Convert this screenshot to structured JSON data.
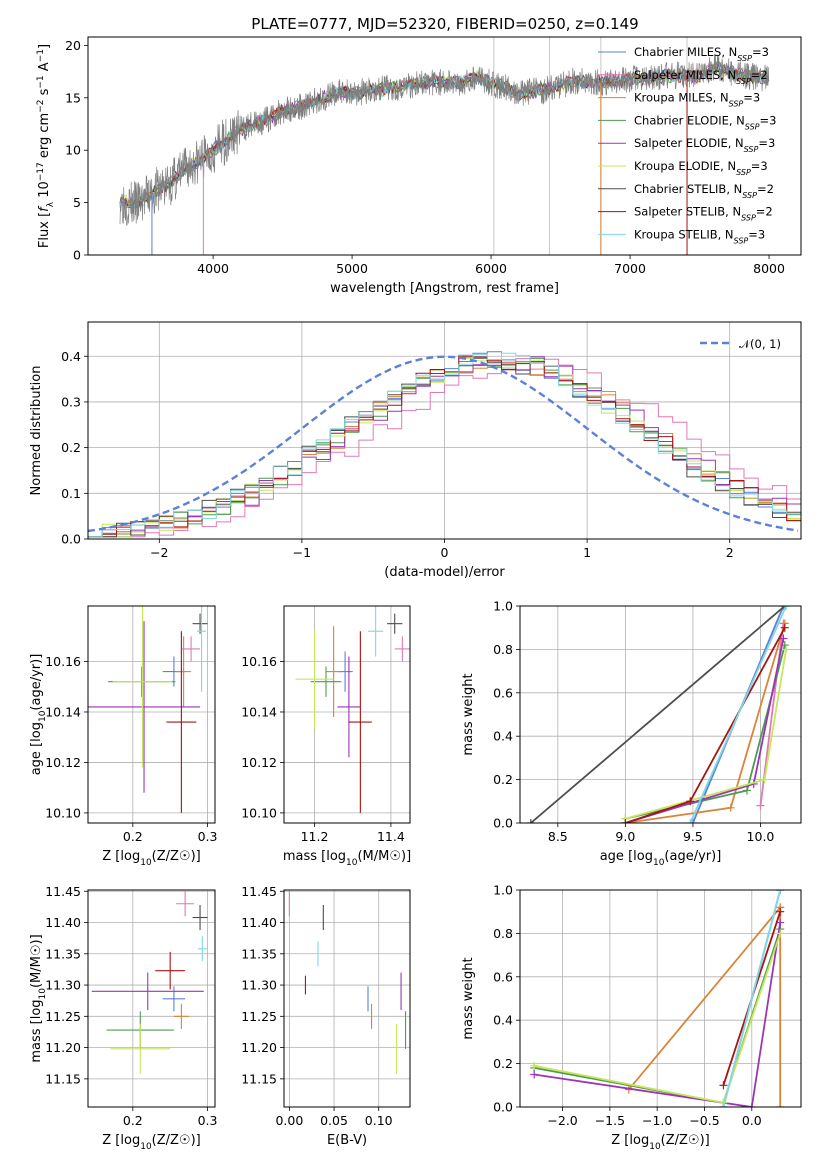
{
  "figure": {
    "title": "PLATE=0777, MJD=52320, FIBERID=0250, z=0.149"
  },
  "models": [
    {
      "name": "Chabrier MILES",
      "nssp": "3",
      "color": "#5d81d6"
    },
    {
      "name": "Salpeter MILES",
      "nssp": "2",
      "color": "#e07ab5"
    },
    {
      "name": "Kroupa MILES",
      "nssp": "3",
      "color": "#d98436"
    },
    {
      "name": "Chabrier ELODIE",
      "nssp": "3",
      "color": "#4f9a4f"
    },
    {
      "name": "Salpeter ELODIE",
      "nssp": "3",
      "color": "#9b35b8"
    },
    {
      "name": "Kroupa ELODIE",
      "nssp": "3",
      "color": "#c5e85a"
    },
    {
      "name": "Chabrier STELIB",
      "nssp": "2",
      "color": "#4d4d4d"
    },
    {
      "name": "Salpeter STELIB",
      "nssp": "2",
      "color": "#a61414"
    },
    {
      "name": "Kroupa STELIB",
      "nssp": "3",
      "color": "#7fd8e4"
    }
  ],
  "chart_data": [
    {
      "id": "spectrum",
      "type": "line",
      "title": "PLATE=0777, MJD=52320, FIBERID=0250, z=0.149",
      "xlabel": "wavelength [Angstrom, rest frame]",
      "ylabel": "Flux [f_λ 10^-17 erg cm^-2 s^-1 A^-1]",
      "xlim": [
        3100,
        8230
      ],
      "ylim": [
        0,
        20.8
      ],
      "xticks": [
        4000,
        5000,
        6000,
        7000,
        8000
      ],
      "yticks": [
        0,
        5,
        10,
        15,
        20
      ],
      "grid": false,
      "legend": "top-right",
      "data_color": "#808080",
      "data_anchors": {
        "x": [
          3330,
          3450,
          3600,
          3700,
          3800,
          3900,
          4000,
          4100,
          4200,
          4300,
          4400,
          4500,
          4600,
          4700,
          4800,
          4900,
          5000,
          5100,
          5200,
          5300,
          5400,
          5500,
          5600,
          5700,
          5800,
          5900,
          6000,
          6100,
          6200,
          6300,
          6400,
          6500,
          6600,
          6700,
          6800,
          6900,
          7000,
          7100,
          7200,
          7300,
          7400,
          7500,
          7600,
          7700,
          7800,
          7900,
          8000
        ],
        "y": [
          5.2,
          4.8,
          6.2,
          7.0,
          8.2,
          9.0,
          10.0,
          11.0,
          12.0,
          12.5,
          13.0,
          13.8,
          14.0,
          14.5,
          15.0,
          15.5,
          15.5,
          15.6,
          15.8,
          16.0,
          16.2,
          16.4,
          16.5,
          16.4,
          16.5,
          17.0,
          16.4,
          16.0,
          15.3,
          15.6,
          15.8,
          16.2,
          16.6,
          16.5,
          16.4,
          16.6,
          16.8,
          16.8,
          17.0,
          17.1,
          17.2,
          17.0,
          18.0,
          17.5,
          17.2,
          17.0,
          16.8
        ]
      },
      "gap_lines": [
        6020,
        6420,
        6790,
        7410
      ]
    },
    {
      "id": "residual-hist",
      "type": "line",
      "xlabel": "(data-model)/error",
      "ylabel": "Normed distribution",
      "xlim": [
        -2.5,
        2.5
      ],
      "ylim": [
        0,
        0.475
      ],
      "xticks": [
        -2,
        -1,
        0,
        1,
        2
      ],
      "yticks": [
        0.0,
        0.1,
        0.2,
        0.3,
        0.4
      ],
      "grid": true,
      "legend": "top-right",
      "bin_width": 0.1,
      "normal": {
        "label": "𝒩(0, 1)",
        "mu": 0,
        "sigma": 1,
        "color": "#5d81d6"
      },
      "hist_shape": {
        "mu": 0.35,
        "sigma": 1.05,
        "peak": 0.39
      },
      "shift": [
        0.0,
        0.25,
        0.05,
        0.02,
        0.08,
        0.0,
        -0.03,
        0.02,
        0.0
      ]
    },
    {
      "id": "age-vs-z",
      "type": "scatter",
      "xlabel": "Z [log10(Z/Z☉)]",
      "ylabel": "age  [log10(age/yr)]",
      "xlim": [
        0.14,
        0.31
      ],
      "ylim": [
        10.096,
        10.182
      ],
      "xticks": [
        0.2,
        0.3
      ],
      "yticks": [
        10.1,
        10.12,
        10.14,
        10.16
      ],
      "grid": true,
      "points": [
        {
          "x": 0.255,
          "y": 10.156,
          "xerr": 0.015,
          "yerr": 0.006
        },
        {
          "x": 0.278,
          "y": 10.165,
          "xerr": 0.012,
          "yerr": 0.005
        },
        {
          "x": 0.268,
          "y": 10.156,
          "xerr": 0.01,
          "yerr": 0.014
        },
        {
          "x": 0.212,
          "y": 10.152,
          "xerr": 0.045,
          "yerr": 0.006
        },
        {
          "x": 0.215,
          "y": 10.142,
          "xerr": 0.075,
          "yerr": 0.034
        },
        {
          "x": 0.213,
          "y": 10.152,
          "xerr": 0.04,
          "yerr": 0.034
        },
        {
          "x": 0.29,
          "y": 10.175,
          "xerr": 0.01,
          "yerr": 0.004
        },
        {
          "x": 0.265,
          "y": 10.136,
          "xerr": 0.02,
          "yerr": 0.036
        },
        {
          "x": 0.292,
          "y": 10.172,
          "xerr": 0.006,
          "yerr": 0.024
        }
      ]
    },
    {
      "id": "age-vs-mass",
      "type": "scatter",
      "xlabel": "mass [log10(M/M☉)]",
      "ylabel": "",
      "xlim": [
        11.12,
        11.45
      ],
      "ylim": [
        10.096,
        10.182
      ],
      "xticks": [
        11.2,
        11.4
      ],
      "yticks": [
        10.1,
        10.12,
        10.14,
        10.16
      ],
      "grid": true,
      "points": [
        {
          "x": 11.28,
          "y": 10.156,
          "xerr": 0.02,
          "yerr": 0.008
        },
        {
          "x": 11.43,
          "y": 10.165,
          "xerr": 0.02,
          "yerr": 0.005
        },
        {
          "x": 11.25,
          "y": 10.156,
          "xerr": 0.02,
          "yerr": 0.018
        },
        {
          "x": 11.23,
          "y": 10.152,
          "xerr": 0.04,
          "yerr": 0.006
        },
        {
          "x": 11.29,
          "y": 10.142,
          "xerr": 0.03,
          "yerr": 0.02
        },
        {
          "x": 11.2,
          "y": 10.153,
          "xerr": 0.05,
          "yerr": 0.02
        },
        {
          "x": 11.41,
          "y": 10.175,
          "xerr": 0.02,
          "yerr": 0.004
        },
        {
          "x": 11.32,
          "y": 10.136,
          "xerr": 0.03,
          "yerr": 0.036
        },
        {
          "x": 11.36,
          "y": 10.172,
          "xerr": 0.02,
          "yerr": 0.01
        }
      ]
    },
    {
      "id": "weight-vs-age",
      "type": "line",
      "xlabel": "age  [log10(age/yr)]",
      "ylabel": "mass weight",
      "xlim": [
        8.22,
        10.3
      ],
      "ylim": [
        0,
        1
      ],
      "xticks": [
        8.5,
        9.0,
        9.5,
        10.0
      ],
      "yticks": [
        0.0,
        0.2,
        0.4,
        0.6,
        0.8,
        1.0
      ],
      "grid": true,
      "series": [
        {
          "x": [
            9.5,
            10.17
          ],
          "y": [
            0.0,
            1.0
          ]
        },
        {
          "x": [
            10.0,
            10.17
          ],
          "y": [
            0.08,
            0.92
          ]
        },
        {
          "x": [
            9.0,
            9.78,
            10.18
          ],
          "y": [
            0.0,
            0.07,
            0.92
          ]
        },
        {
          "x": [
            9.0,
            9.9,
            10.18
          ],
          "y": [
            0.02,
            0.15,
            0.82
          ]
        },
        {
          "x": [
            9.0,
            9.95,
            10.17
          ],
          "y": [
            0.0,
            0.18,
            0.85
          ]
        },
        {
          "x": [
            9.0,
            10.03,
            10.19
          ],
          "y": [
            0.02,
            0.2,
            0.8
          ]
        },
        {
          "x": [
            8.3,
            10.18
          ],
          "y": [
            0.0,
            1.0
          ]
        },
        {
          "x": [
            9.0,
            9.48,
            10.18
          ],
          "y": [
            0.0,
            0.1,
            0.9
          ]
        },
        {
          "x": [
            9.48,
            10.19
          ],
          "y": [
            0.0,
            1.0
          ]
        }
      ]
    },
    {
      "id": "mass-vs-z",
      "type": "scatter",
      "xlabel": "Z [log10(Z/Z☉)]",
      "ylabel": "mass [log10(M/M☉)]",
      "xlim": [
        0.14,
        0.31
      ],
      "ylim": [
        11.105,
        11.452
      ],
      "xticks": [
        0.2,
        0.3
      ],
      "yticks": [
        11.15,
        11.2,
        11.25,
        11.3,
        11.35,
        11.4,
        11.45
      ],
      "grid": true,
      "points": [
        {
          "x": 0.255,
          "y": 11.278,
          "xerr": 0.015,
          "yerr": 0.02
        },
        {
          "x": 0.27,
          "y": 11.43,
          "xerr": 0.012,
          "yerr": 0.02
        },
        {
          "x": 0.265,
          "y": 11.25,
          "xerr": 0.01,
          "yerr": 0.02
        },
        {
          "x": 0.21,
          "y": 11.228,
          "xerr": 0.045,
          "yerr": 0.03
        },
        {
          "x": 0.22,
          "y": 11.29,
          "xerr": 0.075,
          "yerr": 0.03
        },
        {
          "x": 0.21,
          "y": 11.198,
          "xerr": 0.04,
          "yerr": 0.04
        },
        {
          "x": 0.29,
          "y": 11.408,
          "xerr": 0.01,
          "yerr": 0.02
        },
        {
          "x": 0.25,
          "y": 11.323,
          "xerr": 0.02,
          "yerr": 0.03
        },
        {
          "x": 0.293,
          "y": 11.358,
          "xerr": 0.006,
          "yerr": 0.02
        }
      ]
    },
    {
      "id": "mass-vs-ebv",
      "type": "scatter",
      "xlabel": "E(B-V)",
      "ylabel": "",
      "xlim": [
        -0.006,
        0.135
      ],
      "ylim": [
        11.105,
        11.452
      ],
      "xticks": [
        0.0,
        0.05,
        0.1
      ],
      "yticks": [
        11.15,
        11.2,
        11.25,
        11.3,
        11.35,
        11.4,
        11.45
      ],
      "grid": true,
      "points": [
        {
          "x": 0.088,
          "y": 11.278,
          "xerr": 0.0,
          "yerr": 0.02
        },
        {
          "x": 0.0,
          "y": 11.43,
          "xerr": 0.0,
          "yerr": 0.02
        },
        {
          "x": 0.092,
          "y": 11.25,
          "xerr": 0.0,
          "yerr": 0.02
        },
        {
          "x": 0.13,
          "y": 11.228,
          "xerr": 0.0,
          "yerr": 0.03
        },
        {
          "x": 0.125,
          "y": 11.29,
          "xerr": 0.0,
          "yerr": 0.03
        },
        {
          "x": 0.12,
          "y": 11.198,
          "xerr": 0.0,
          "yerr": 0.04
        },
        {
          "x": 0.038,
          "y": 11.408,
          "xerr": 0.0,
          "yerr": 0.02
        },
        {
          "x": 0.018,
          "y": 11.3,
          "xerr": 0.0,
          "yerr": 0.015
        },
        {
          "x": 0.032,
          "y": 11.35,
          "xerr": 0.0,
          "yerr": 0.02
        }
      ]
    },
    {
      "id": "weight-vs-z",
      "type": "line",
      "xlabel": "Z [log10(Z/Z☉)]",
      "ylabel": "mass weight",
      "xlim": [
        -2.45,
        0.52
      ],
      "ylim": [
        0,
        1
      ],
      "xticks": [
        -2.0,
        -1.5,
        -1.0,
        -0.5,
        0.0
      ],
      "yticks": [
        0.0,
        0.2,
        0.4,
        0.6,
        0.8,
        1.0
      ],
      "grid": true,
      "series": [
        {
          "x": [
            -0.3,
            0.3
          ],
          "y": [
            0.0,
            1.0
          ]
        },
        {
          "x": [
            0.3
          ],
          "y": [
            0.92
          ]
        },
        {
          "x": [
            -1.3,
            0.3,
            0.3
          ],
          "y": [
            0.08,
            0.92,
            0.0
          ]
        },
        {
          "x": [
            -2.3,
            -0.3,
            0.3
          ],
          "y": [
            0.18,
            0.02,
            0.82
          ]
        },
        {
          "x": [
            -2.3,
            0.0,
            0.3
          ],
          "y": [
            0.15,
            0.0,
            0.85
          ]
        },
        {
          "x": [
            -2.3,
            -0.3,
            0.3
          ],
          "y": [
            0.19,
            0.02,
            0.8
          ]
        },
        {
          "x": [
            0.3
          ],
          "y": [
            1.0
          ]
        },
        {
          "x": [
            -0.3,
            0.3
          ],
          "y": [
            0.1,
            0.9
          ]
        },
        {
          "x": [
            -0.3,
            0.3
          ],
          "y": [
            0.0,
            1.0
          ]
        }
      ]
    }
  ]
}
